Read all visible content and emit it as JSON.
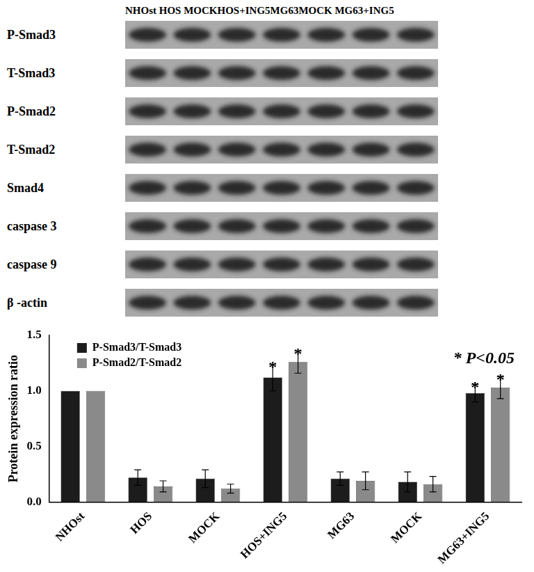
{
  "blot": {
    "header": "NHOst HOS MOCKHOS+ING5MG63MOCK MG63+ING5",
    "rows": [
      "P-Smad3",
      "T-Smad3",
      "P-Smad2",
      "T-Smad2",
      "Smad4",
      "caspase 3",
      "caspase 9",
      "β -actin"
    ]
  },
  "chart_data": {
    "type": "bar",
    "categories": [
      "NHOst",
      "HOS",
      "MOCK",
      "HOS+ING5",
      "MG63",
      "MOCK",
      "MG63+ING5"
    ],
    "y_label": "Protein expression ratio",
    "series": [
      {
        "name": "P-Smad3/T-Smad3",
        "color": "#1c1c1c",
        "values": [
          1.0,
          0.22,
          0.21,
          1.12,
          0.21,
          0.18,
          0.98
        ],
        "errors": [
          0,
          0.07,
          0.08,
          0.12,
          0.06,
          0.09,
          0.08
        ],
        "significant": [
          false,
          false,
          false,
          true,
          false,
          false,
          true
        ]
      },
      {
        "name": "P-Smad2/T-Smad2",
        "color": "#8a8a8a",
        "values": [
          1.0,
          0.14,
          0.12,
          1.26,
          0.19,
          0.16,
          1.03
        ],
        "errors": [
          0,
          0.05,
          0.04,
          0.1,
          0.08,
          0.07,
          0.1
        ],
        "significant": [
          false,
          false,
          false,
          true,
          false,
          false,
          true
        ]
      }
    ],
    "significance_mark": "*",
    "annotation": "* P<0.05",
    "ylim": [
      0,
      1.5
    ],
    "yticks": [
      {
        "value": 0,
        "label": "0.0"
      },
      {
        "value": 0.5,
        "label": "0.5"
      },
      {
        "value": 1,
        "label": "1.0"
      },
      {
        "value": 1.5,
        "label": "1.5"
      }
    ],
    "grid": false,
    "legend": "upper left"
  }
}
